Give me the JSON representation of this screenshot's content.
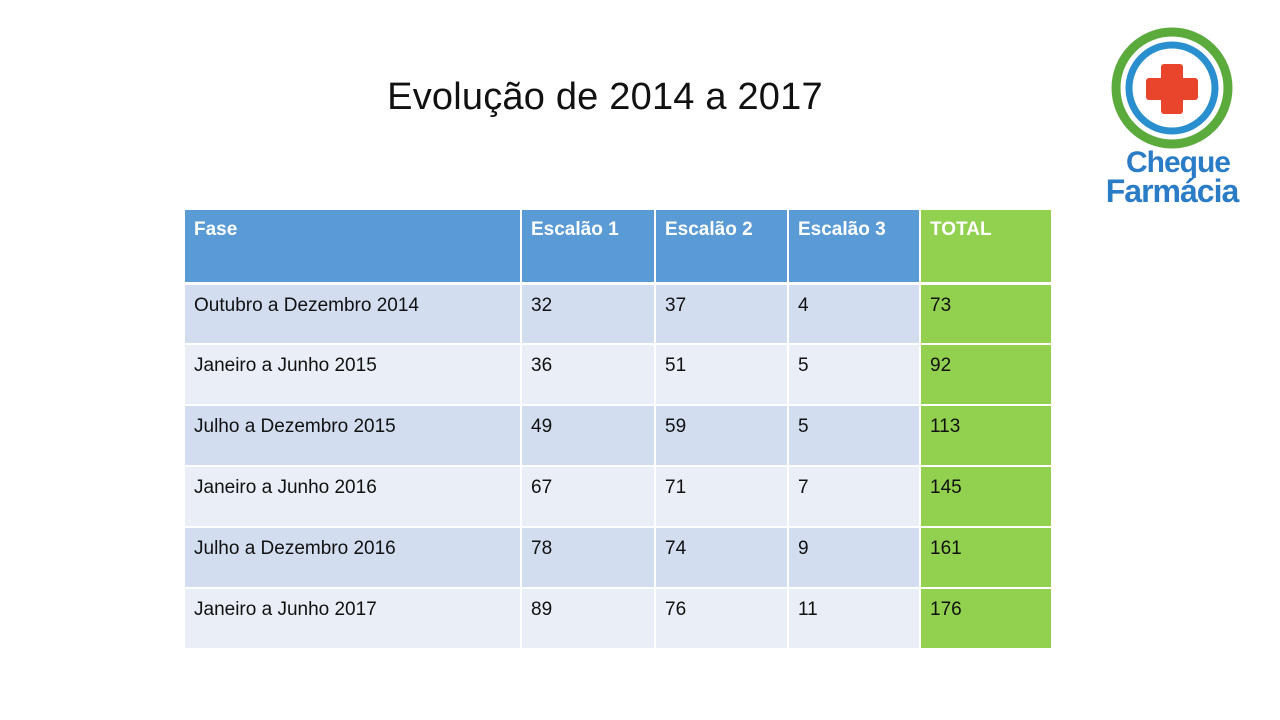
{
  "slide": {
    "title": "Evolução de 2014 a 2017"
  },
  "logo": {
    "line1": "Cheque",
    "line2": "Farmácia",
    "icon": "red-cross-icon",
    "colors": {
      "ring_outer": "#5aaa3c",
      "ring_inner": "#2a8fcf",
      "cross": "#e8452c",
      "text": "#2a7cc7"
    }
  },
  "table": {
    "colors": {
      "header": "#5b9bd5",
      "total": "#92d050",
      "row_dark": "#d2deef",
      "row_light": "#eaeff7"
    },
    "headers": [
      "Fase",
      "Escalão 1",
      "Escalão 2",
      "Escalão 3",
      "TOTAL"
    ],
    "rows": [
      [
        "Outubro a Dezembro 2014",
        "32",
        "37",
        "4",
        "73"
      ],
      [
        "Janeiro a Junho 2015",
        "36",
        "51",
        "5",
        "92"
      ],
      [
        "Julho a Dezembro 2015",
        "49",
        "59",
        "5",
        "113"
      ],
      [
        "Janeiro a Junho 2016",
        "67",
        "71",
        "7",
        "145"
      ],
      [
        "Julho a Dezembro 2016",
        "78",
        "74",
        "9",
        "161"
      ],
      [
        "Janeiro a Junho 2017",
        "89",
        "76",
        "11",
        "176"
      ]
    ]
  }
}
